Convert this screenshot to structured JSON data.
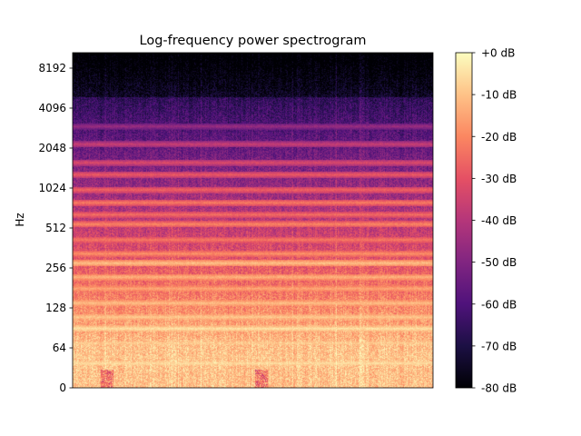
{
  "chart_data": {
    "type": "heatmap",
    "title": "Log-frequency power spectrogram",
    "xlabel": "",
    "ylabel": "Hz",
    "y_scale": "log2",
    "y_ticks": [
      {
        "value": 0,
        "label": "0"
      },
      {
        "value": 64,
        "label": "64"
      },
      {
        "value": 128,
        "label": "128"
      },
      {
        "value": 256,
        "label": "256"
      },
      {
        "value": 512,
        "label": "512"
      },
      {
        "value": 1024,
        "label": "1024"
      },
      {
        "value": 2048,
        "label": "2048"
      },
      {
        "value": 4096,
        "label": "4096"
      },
      {
        "value": 8192,
        "label": "8192"
      }
    ],
    "colorbar": {
      "colormap": "magma",
      "range_db": [
        -80,
        0
      ],
      "ticks": [
        "+0 dB",
        "-10 dB",
        "-20 dB",
        "-30 dB",
        "-40 dB",
        "-50 dB",
        "-60 dB",
        "-70 dB",
        "-80 dB"
      ]
    },
    "grid": false,
    "harmonic_band_hz": [
      {
        "hz": 40,
        "db": -5
      },
      {
        "hz": 50,
        "db": -10
      },
      {
        "hz": 70,
        "db": -8
      },
      {
        "hz": 90,
        "db": -4
      },
      {
        "hz": 110,
        "db": -8
      },
      {
        "hz": 140,
        "db": -10
      },
      {
        "hz": 180,
        "db": -14
      },
      {
        "hz": 220,
        "db": -12
      },
      {
        "hz": 280,
        "db": -10
      },
      {
        "hz": 330,
        "db": -18
      },
      {
        "hz": 420,
        "db": -22
      },
      {
        "hz": 550,
        "db": -20
      },
      {
        "hz": 650,
        "db": -24
      },
      {
        "hz": 800,
        "db": -22
      },
      {
        "hz": 1000,
        "db": -26
      },
      {
        "hz": 1300,
        "db": -28
      },
      {
        "hz": 1600,
        "db": -32
      },
      {
        "hz": 2200,
        "db": -36
      },
      {
        "hz": 3000,
        "db": -45
      }
    ]
  }
}
